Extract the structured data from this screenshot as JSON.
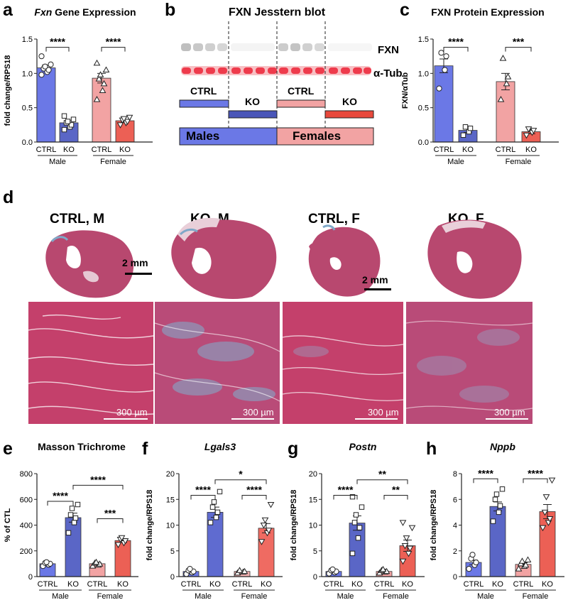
{
  "labels": {
    "a": "a",
    "b": "b",
    "c": "c",
    "d": "d",
    "e": "e",
    "f": "f",
    "g": "g",
    "h": "h"
  },
  "panel_b": {
    "title": "FXN Jesstern blot",
    "fxn_label": "FXN",
    "tub_label": "α-Tub",
    "groups": [
      "CTRL",
      "KO",
      "CTRL",
      "KO"
    ],
    "sexes": [
      "Males",
      "Females"
    ],
    "colors": {
      "male": "#6b78e6",
      "male_ko": "#4a56b8",
      "female": "#f2a3a3",
      "female_ko": "#e8493c"
    }
  },
  "panel_d": {
    "titles": [
      "CTRL, M",
      "KO, M",
      "CTRL, F",
      "KO, F"
    ],
    "scale_mm": "2 mm",
    "scale_um": "300 µm"
  },
  "chart_data": [
    {
      "id": "a",
      "type": "bar",
      "title_italic": "Fxn",
      "title_rest": " Gene Expression",
      "ylabel": "fold change/RPS18",
      "ylim": [
        0,
        1.5
      ],
      "yticks": [
        "0.0",
        "0.5",
        "1.0",
        "1.5"
      ],
      "categories": [
        "CTRL",
        "KO",
        "CTRL",
        "KO"
      ],
      "groups": [
        "Male",
        "Female"
      ],
      "values": [
        1.08,
        0.28,
        0.93,
        0.31
      ],
      "sem": [
        0.04,
        0.03,
        0.07,
        0.02
      ],
      "markers": [
        "circle",
        "square",
        "triangle",
        "down"
      ],
      "points": [
        [
          0.98,
          1.02,
          1.05,
          1.07,
          1.1,
          1.13,
          1.25
        ],
        [
          0.18,
          0.22,
          0.25,
          0.28,
          0.3,
          0.33,
          0.38
        ],
        [
          0.62,
          0.75,
          0.85,
          0.92,
          0.98,
          1.05,
          1.15
        ],
        [
          0.25,
          0.28,
          0.3,
          0.32,
          0.34,
          0.36
        ]
      ],
      "sig": [
        {
          "from": 0,
          "to": 1,
          "text": "****",
          "y": 1.38
        },
        {
          "from": 2,
          "to": 3,
          "text": "****",
          "y": 1.38
        }
      ]
    },
    {
      "id": "c",
      "type": "bar",
      "title_italic": "",
      "title_rest": "FXN Protein Expression",
      "ylabel": "FXN/αTub",
      "ylim": [
        0,
        1.5
      ],
      "yticks": [
        "0.0",
        "0.5",
        "1.0",
        "1.5"
      ],
      "categories": [
        "CTRL",
        "KO",
        "CTRL",
        "KO"
      ],
      "groups": [
        "Male",
        "Female"
      ],
      "values": [
        1.11,
        0.17,
        0.88,
        0.15
      ],
      "sem": [
        0.1,
        0.03,
        0.12,
        0.03
      ],
      "markers": [
        "circle",
        "square",
        "triangle",
        "down"
      ],
      "points": [
        [
          0.78,
          1.05,
          1.25,
          1.3
        ],
        [
          0.1,
          0.15,
          0.2,
          0.22
        ],
        [
          0.62,
          0.85,
          0.95,
          1.22
        ],
        [
          0.1,
          0.14,
          0.17,
          0.19
        ]
      ],
      "sig": [
        {
          "from": 0,
          "to": 1,
          "text": "****",
          "y": 1.38
        },
        {
          "from": 2,
          "to": 3,
          "text": "***",
          "y": 1.38
        }
      ]
    },
    {
      "id": "e",
      "type": "bar",
      "title_italic": "",
      "title_rest": "Masson Trichrome",
      "ylabel": "% of CTL",
      "ylim": [
        0,
        800
      ],
      "yticks": [
        "0",
        "200",
        "400",
        "600",
        "800"
      ],
      "categories": [
        "CTRL",
        "KO",
        "CTRL",
        "KO"
      ],
      "groups": [
        "Male",
        "Female"
      ],
      "values": [
        100,
        458,
        100,
        280
      ],
      "sem": [
        8,
        35,
        8,
        15
      ],
      "markers": [
        "circle",
        "square",
        "triangle",
        "down"
      ],
      "points": [
        [
          82,
          92,
          100,
          106,
          112
        ],
        [
          340,
          420,
          455,
          480,
          530,
          560
        ],
        [
          82,
          90,
          98,
          105,
          112
        ],
        [
          248,
          262,
          278,
          290,
          302
        ]
      ],
      "sig": [
        {
          "from": 0,
          "to": 1,
          "text": "****",
          "y": 585
        },
        {
          "from": 2,
          "to": 3,
          "text": "***",
          "y": 450
        },
        {
          "from": 1,
          "to": 3,
          "text": "****",
          "y": 710
        }
      ]
    },
    {
      "id": "f",
      "type": "bar",
      "title_italic": "Lgals3",
      "title_rest": "",
      "ylabel": "fold change/RPS18",
      "ylim": [
        0,
        20
      ],
      "yticks": [
        "0",
        "5",
        "10",
        "15",
        "20"
      ],
      "categories": [
        "CTRL",
        "KO",
        "CTRL",
        "KO"
      ],
      "groups": [
        "Male",
        "Female"
      ],
      "values": [
        1.0,
        12.5,
        1.0,
        9.4
      ],
      "sem": [
        0.15,
        1.0,
        0.1,
        0.9
      ],
      "markers": [
        "circle",
        "square",
        "triangle",
        "down"
      ],
      "points": [
        [
          0.5,
          0.8,
          1.0,
          1.2,
          1.5
        ],
        [
          10.5,
          11.5,
          12.5,
          13.5,
          14.5,
          16.5
        ],
        [
          0.7,
          0.9,
          1.0,
          1.2
        ],
        [
          6.8,
          8.5,
          9.0,
          10.0,
          11.0,
          14.0
        ]
      ],
      "sig": [
        {
          "from": 0,
          "to": 1,
          "text": "****",
          "y": 15.8
        },
        {
          "from": 2,
          "to": 3,
          "text": "****",
          "y": 15.8
        },
        {
          "from": 1,
          "to": 3,
          "text": "*",
          "y": 18.8
        }
      ]
    },
    {
      "id": "g",
      "type": "bar",
      "title_italic": "Postn",
      "title_rest": "",
      "ylabel": "fold change/RPS18",
      "ylim": [
        0,
        20
      ],
      "yticks": [
        "0",
        "5",
        "10",
        "15",
        "20"
      ],
      "categories": [
        "CTRL",
        "KO",
        "CTRL",
        "KO"
      ],
      "groups": [
        "Male",
        "Female"
      ],
      "values": [
        1.0,
        10.4,
        1.0,
        6.0
      ],
      "sem": [
        0.15,
        1.4,
        0.15,
        1.1
      ],
      "markers": [
        "circle",
        "square",
        "triangle",
        "down"
      ],
      "points": [
        [
          0.6,
          0.8,
          1.0,
          1.2,
          1.4
        ],
        [
          4.5,
          7.5,
          9.5,
          10.5,
          12,
          13.5,
          15.5
        ],
        [
          0.7,
          0.9,
          1.0,
          1.2,
          1.4
        ],
        [
          3.0,
          4.5,
          5.5,
          6.0,
          7.5,
          9.5,
          10.5
        ]
      ],
      "sig": [
        {
          "from": 0,
          "to": 1,
          "text": "****",
          "y": 15.8
        },
        {
          "from": 2,
          "to": 3,
          "text": "**",
          "y": 15.8
        },
        {
          "from": 1,
          "to": 3,
          "text": "**",
          "y": 18.8
        }
      ]
    },
    {
      "id": "h",
      "type": "bar",
      "title_italic": "Nppb",
      "title_rest": "",
      "ylabel": "fold change/RPS18",
      "ylim": [
        0,
        8
      ],
      "yticks": [
        "0",
        "2",
        "4",
        "6",
        "8"
      ],
      "categories": [
        "CTRL",
        "KO",
        "CTRL",
        "KO"
      ],
      "groups": [
        "Male",
        "Female"
      ],
      "values": [
        1.1,
        5.45,
        0.95,
        5.05
      ],
      "sem": [
        0.18,
        0.35,
        0.12,
        0.55
      ],
      "markers": [
        "circle",
        "square",
        "triangle",
        "down"
      ],
      "points": [
        [
          0.6,
          0.9,
          1.1,
          1.4,
          1.7
        ],
        [
          4.3,
          5.0,
          5.5,
          6.0,
          6.4,
          6.8
        ],
        [
          0.6,
          0.8,
          0.9,
          1.0,
          1.2,
          1.3
        ],
        [
          3.8,
          4.2,
          4.5,
          5.0,
          6.2,
          7.5
        ]
      ],
      "sig": [
        {
          "from": 0,
          "to": 1,
          "text": "****",
          "y": 7.6
        },
        {
          "from": 2,
          "to": 3,
          "text": "****",
          "y": 7.6
        }
      ]
    }
  ]
}
